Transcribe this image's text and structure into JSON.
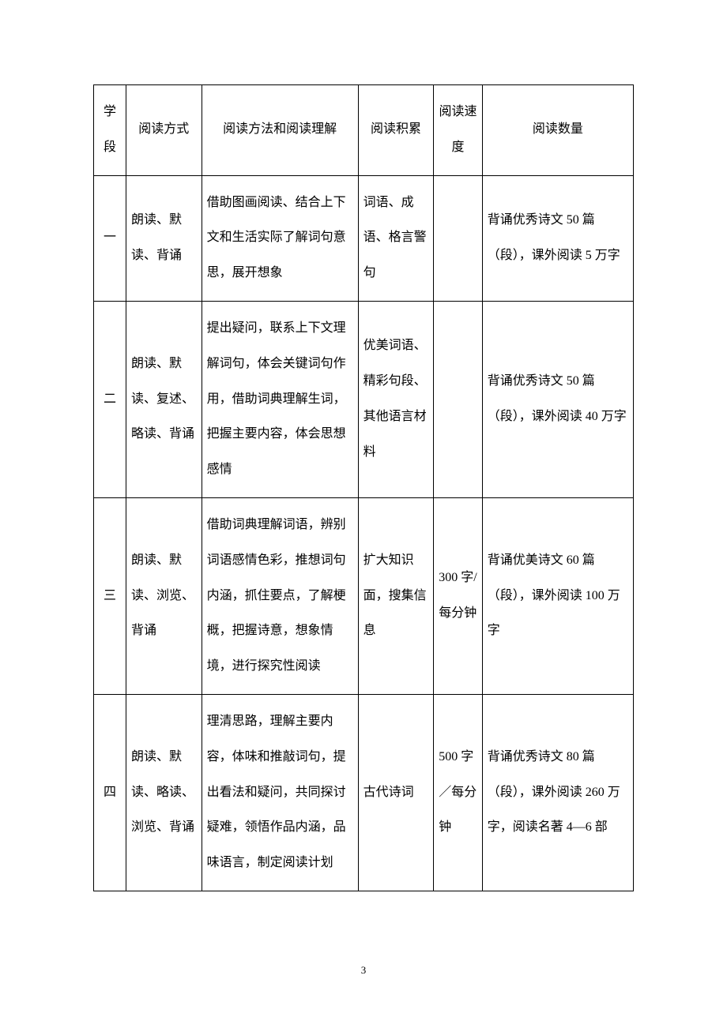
{
  "page": {
    "number": "3"
  },
  "table": {
    "headers": {
      "col1": "学段",
      "col2": "阅读方式",
      "col3": "阅读方法和阅读理解",
      "col4": "阅读积累",
      "col5": "阅读速度",
      "col6": "阅读数量"
    },
    "rows": [
      {
        "stage": "一",
        "method": "朗读、默读、背诵",
        "comprehension": "借助图画阅读、结合上下文和生活实际了解词句意思，展开想象",
        "accumulation": "词语、成语、格言警句",
        "speed": "",
        "quantity": "背诵优秀诗文 50 篇（段），课外阅读 5 万字"
      },
      {
        "stage": "二",
        "method": "朗读、默读、复述、略读、背诵",
        "comprehension": "提出疑问，联系上下文理解词句，体会关键词句作用，借助词典理解生词，把握主要内容，体会思想感情",
        "accumulation": "优美词语、精彩句段、其他语言材料",
        "speed": "",
        "quantity": "背诵优秀诗文 50 篇（段），课外阅读 40 万字"
      },
      {
        "stage": "三",
        "method": "朗读、默读、浏览、背诵",
        "comprehension": "借助词典理解词语，辨别词语感情色彩，推想词句内涵，抓住要点，了解梗概，把握诗意，想象情境，进行探究性阅读",
        "accumulation": "扩大知识面，搜集信息",
        "speed": "300 字/每分钟",
        "quantity": "背诵优美诗文 60 篇（段），课外阅读 100 万字"
      },
      {
        "stage": "四",
        "method": "朗读、默读、略读、浏览、背诵",
        "comprehension": "理清思路，理解主要内容，体味和推敲词句，提出看法和疑问，共同探讨疑难，领悟作品内涵，品味语言，制定阅读计划",
        "accumulation": "古代诗词",
        "speed": "500 字／每分钟",
        "quantity": "背诵优秀诗文 80 篇（段），课外阅读 260 万字，阅读名著 4—6 部"
      }
    ]
  }
}
